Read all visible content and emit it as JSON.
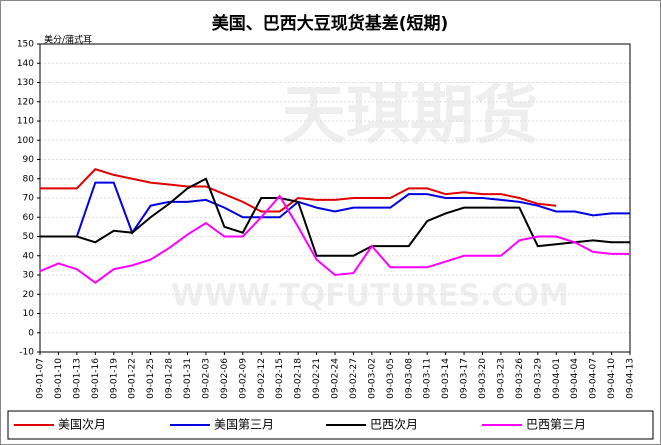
{
  "chart_data": {
    "type": "line",
    "title": "美国、巴西大豆现货基差(短期)",
    "y_label": "美分/蒲式耳",
    "watermarks": [
      "天琪期货",
      "WWW.TQFUTURES.COM"
    ],
    "categories": [
      "09-01-07",
      "09-01-10",
      "09-01-13",
      "09-01-16",
      "09-01-19",
      "09-01-22",
      "09-01-25",
      "09-01-28",
      "09-01-31",
      "09-02-03",
      "09-02-06",
      "09-02-09",
      "09-02-12",
      "09-02-15",
      "09-02-18",
      "09-02-21",
      "09-02-24",
      "09-02-27",
      "09-03-02",
      "09-03-05",
      "09-03-08",
      "09-03-11",
      "09-03-14",
      "09-03-17",
      "09-03-20",
      "09-03-23",
      "09-03-26",
      "09-03-29",
      "09-04-01",
      "09-04-04",
      "09-04-07",
      "09-04-10",
      "09-04-13"
    ],
    "series": [
      {
        "name": "美国次月",
        "color": "#e00000",
        "values": [
          75,
          75,
          75,
          85,
          82,
          80,
          78,
          77,
          76,
          76,
          72,
          68,
          63,
          63,
          70,
          69,
          69,
          70,
          70,
          70,
          75,
          75,
          72,
          73,
          72,
          72,
          70,
          67,
          66,
          null,
          null,
          null,
          null
        ]
      },
      {
        "name": "美国第三月",
        "color": "#0000e0",
        "values": [
          50,
          50,
          50,
          78,
          78,
          52,
          66,
          68,
          68,
          69,
          65,
          60,
          60,
          60,
          68,
          65,
          63,
          65,
          65,
          65,
          72,
          72,
          70,
          70,
          70,
          69,
          68,
          66,
          63,
          63,
          61,
          62,
          62
        ]
      },
      {
        "name": "巴西次月",
        "color": "#000000",
        "values": [
          50,
          50,
          50,
          47,
          53,
          52,
          60,
          67,
          75,
          80,
          55,
          52,
          70,
          70,
          68,
          40,
          40,
          40,
          45,
          45,
          45,
          58,
          62,
          65,
          65,
          65,
          65,
          45,
          46,
          47,
          48,
          47,
          47
        ]
      },
      {
        "name": "巴西第三月",
        "color": "#ff00ff",
        "values": [
          32,
          36,
          33,
          26,
          33,
          35,
          38,
          44,
          51,
          57,
          50,
          50,
          60,
          71,
          55,
          38,
          30,
          31,
          45,
          34,
          34,
          34,
          37,
          40,
          40,
          40,
          48,
          50,
          50,
          47,
          42,
          41,
          41
        ]
      }
    ],
    "ylim": [
      -10,
      150
    ],
    "yticks": [
      -10,
      0,
      10,
      20,
      30,
      40,
      50,
      60,
      70,
      80,
      90,
      100,
      110,
      120,
      130,
      140,
      150
    ],
    "grid": true
  }
}
